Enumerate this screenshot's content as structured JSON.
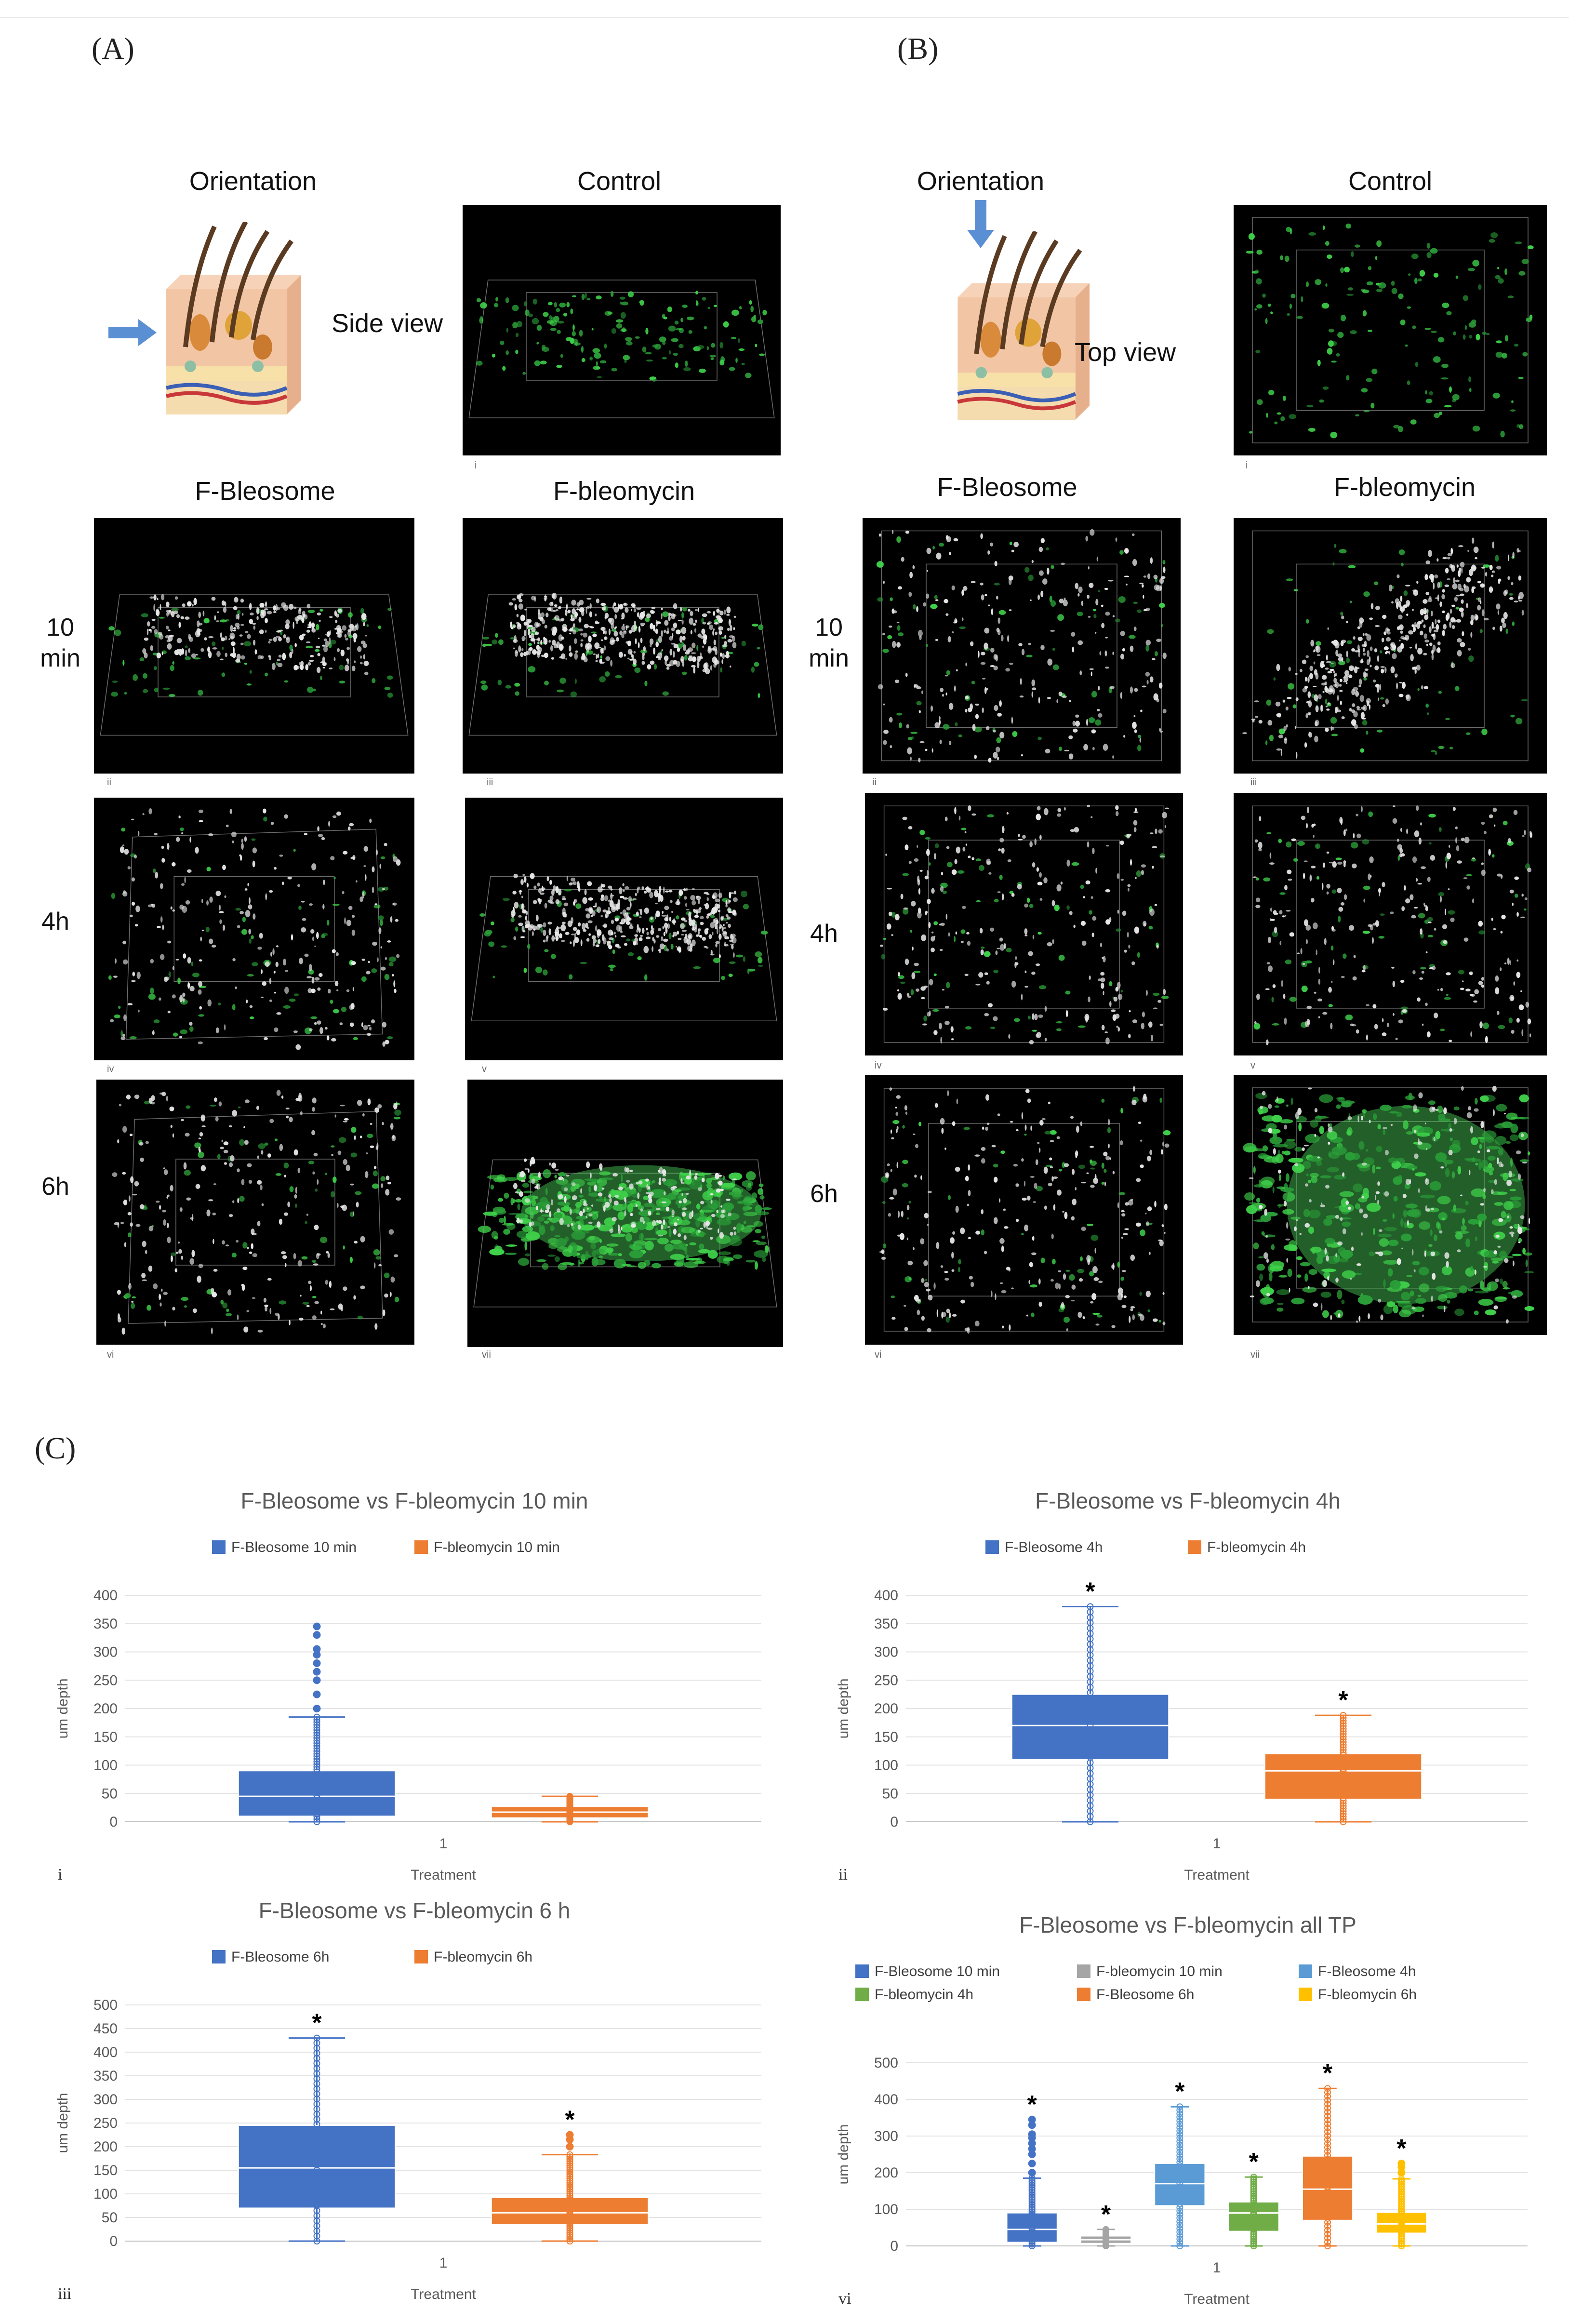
{
  "panels": {
    "a": "(A)",
    "b": "(B)",
    "c": "(C)"
  },
  "headers": {
    "orientation": "Orientation",
    "control": "Control",
    "fbleosome": "F-Bleosome",
    "fbleomycin": "F-bleomycin",
    "side_view": "Side view",
    "top_view": "Top view"
  },
  "rows": {
    "r10_line1": "10",
    "r10_line2": "min",
    "r4h": "4h",
    "r6h": "6h"
  },
  "romans": {
    "i": "i",
    "ii": "ii",
    "iii": "iii",
    "iv": "iv",
    "v": "v",
    "vi": "vi",
    "vii": "vii"
  },
  "colors": {
    "blue": "#4472C4",
    "orange": "#ED7D31",
    "gray": "#A5A5A5",
    "lightblue": "#5B9BD5",
    "green": "#70AD47",
    "gold": "#FFC000"
  },
  "chart_data": [
    {
      "type": "box",
      "title": "F-Bleosome vs F-bleomycin 10 min",
      "xlabel": "Treatment",
      "ylabel": "um depth",
      "categories": [
        "1"
      ],
      "ylim": [
        0,
        400
      ],
      "yticks": [
        0,
        50,
        100,
        150,
        200,
        250,
        300,
        350,
        400
      ],
      "sub": "i",
      "series": [
        {
          "name": "F-Bleosome 10 min",
          "color": "#4472C4",
          "min": 0,
          "q1": 10,
          "median": 45,
          "q3": 90,
          "max": 185,
          "outliers": [
            200,
            225,
            250,
            265,
            280,
            295,
            305,
            330,
            345
          ],
          "star": false
        },
        {
          "name": "F-bleomycin 10 min",
          "color": "#ED7D31",
          "min": 0,
          "q1": 7,
          "median": 17,
          "q3": 27,
          "max": 45,
          "outliers": [],
          "star": false
        }
      ]
    },
    {
      "type": "box",
      "title": "F-Bleosome vs F-bleomycin 4h",
      "xlabel": "Treatment",
      "ylabel": "um depth",
      "categories": [
        "1"
      ],
      "ylim": [
        0,
        400
      ],
      "yticks": [
        0,
        50,
        100,
        150,
        200,
        250,
        300,
        350,
        400
      ],
      "sub": "ii",
      "series": [
        {
          "name": "F-Bleosome 4h",
          "color": "#4472C4",
          "min": 0,
          "q1": 110,
          "median": 170,
          "q3": 225,
          "max": 380,
          "outliers": [],
          "star": true
        },
        {
          "name": "F-bleomycin 4h",
          "color": "#ED7D31",
          "min": 0,
          "q1": 40,
          "median": 90,
          "q3": 120,
          "max": 188,
          "outliers": [],
          "star": true
        }
      ]
    },
    {
      "type": "box",
      "title": "F-Bleosome vs F-bleomycin 6 h",
      "xlabel": "Treatment",
      "ylabel": "um depth",
      "categories": [
        "1"
      ],
      "ylim": [
        0,
        500
      ],
      "yticks": [
        0,
        50,
        100,
        150,
        200,
        250,
        300,
        350,
        400,
        450,
        500
      ],
      "sub": "iii",
      "series": [
        {
          "name": "F-Bleosome 6h",
          "color": "#4472C4",
          "min": 0,
          "q1": 70,
          "median": 155,
          "q3": 245,
          "max": 430,
          "outliers": [],
          "star": true
        },
        {
          "name": "F-bleomycin 6h",
          "color": "#ED7D31",
          "min": 0,
          "q1": 35,
          "median": 60,
          "q3": 92,
          "max": 183,
          "outliers": [
            200,
            215,
            225
          ],
          "star": true
        }
      ]
    },
    {
      "type": "box",
      "title": "F-Bleosome vs F-bleomycin all TP",
      "xlabel": "Treatment",
      "ylabel": "um depth",
      "categories": [
        "1"
      ],
      "ylim": [
        0,
        500
      ],
      "yticks": [
        0,
        100,
        200,
        300,
        400,
        500
      ],
      "sub": "vi",
      "series": [
        {
          "name": "F-Bleosome 10 min",
          "color": "#4472C4",
          "min": 0,
          "q1": 10,
          "median": 45,
          "q3": 90,
          "max": 185,
          "outliers": [
            200,
            225,
            250,
            265,
            280,
            295,
            305,
            330,
            345
          ],
          "star": true
        },
        {
          "name": "F-bleomycin 10 min",
          "color": "#A5A5A5",
          "min": 0,
          "q1": 7,
          "median": 17,
          "q3": 27,
          "max": 45,
          "outliers": [],
          "star": true
        },
        {
          "name": "F-Bleosome 4h",
          "color": "#5B9BD5",
          "min": 0,
          "q1": 110,
          "median": 170,
          "q3": 225,
          "max": 380,
          "outliers": [],
          "star": true
        },
        {
          "name": "F-bleomycin 4h",
          "color": "#70AD47",
          "min": 0,
          "q1": 40,
          "median": 90,
          "q3": 120,
          "max": 188,
          "outliers": [],
          "star": true
        },
        {
          "name": "F-Bleosome 6h",
          "color": "#ED7D31",
          "min": 0,
          "q1": 70,
          "median": 155,
          "q3": 245,
          "max": 430,
          "outliers": [],
          "star": true
        },
        {
          "name": "F-bleomycin 6h",
          "color": "#FFC000",
          "min": 0,
          "q1": 35,
          "median": 60,
          "q3": 92,
          "max": 183,
          "outliers": [
            200,
            215,
            225
          ],
          "star": true
        }
      ]
    }
  ]
}
